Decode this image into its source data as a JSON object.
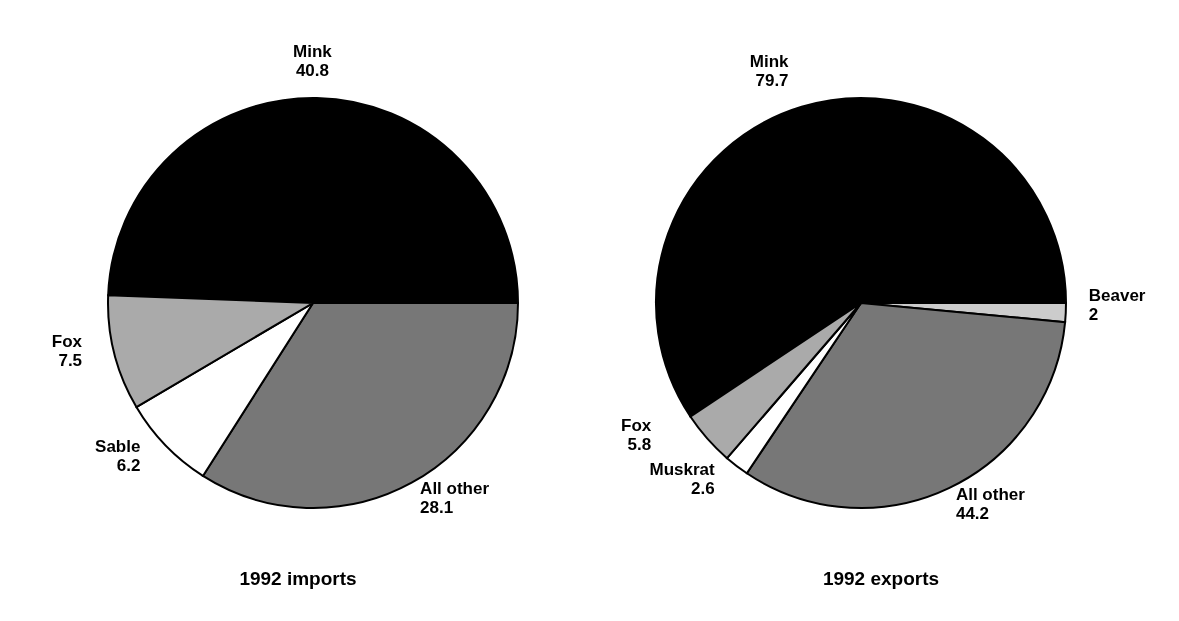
{
  "chart_data": [
    {
      "type": "pie",
      "title": "1992 imports",
      "categories": [
        "Mink",
        "All other",
        "Sable",
        "Fox"
      ],
      "values": [
        40.8,
        28.1,
        6.2,
        7.5
      ],
      "colors": [
        "#000000",
        "#777777",
        "#ffffff",
        "#aaaaaa"
      ],
      "data_labels": true,
      "legend": false
    },
    {
      "type": "pie",
      "title": "1992 exports",
      "categories": [
        "Mink",
        "Beaver",
        "All other",
        "Muskrat",
        "Fox"
      ],
      "values": [
        79.7,
        2,
        44.2,
        2.6,
        5.8
      ],
      "colors": [
        "#000000",
        "#cccccc",
        "#777777",
        "#ffffff",
        "#aaaaaa"
      ],
      "data_labels": true,
      "legend": false
    }
  ]
}
